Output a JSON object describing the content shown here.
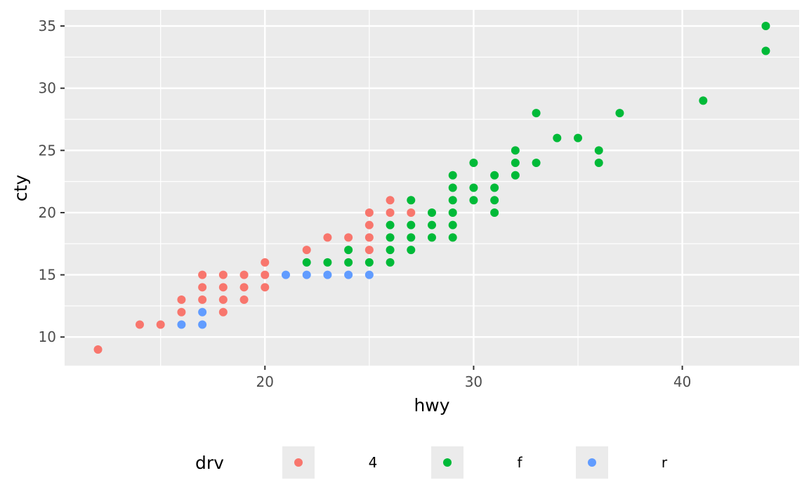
{
  "chart_data": {
    "type": "scatter",
    "xlabel": "hwy",
    "ylabel": "cty",
    "xlim": [
      10.4,
      45.6
    ],
    "ylim": [
      7.7,
      36.3
    ],
    "x_ticks": [
      20,
      30,
      40
    ],
    "x_minor_ticks": [
      15,
      25,
      35
    ],
    "y_ticks": [
      10,
      15,
      20,
      25,
      30,
      35
    ],
    "y_minor_ticks": [
      12.5,
      17.5,
      22.5,
      27.5,
      32.5
    ],
    "grid": true,
    "panel_background": "#ebebeb",
    "legend": {
      "title": "drv",
      "position": "bottom",
      "entries": [
        {
          "label": "4",
          "color": "#F8766D"
        },
        {
          "label": "f",
          "color": "#00BA38"
        },
        {
          "label": "r",
          "color": "#619CFF"
        }
      ]
    },
    "series": [
      {
        "name": "4",
        "color": "#F8766D",
        "points": [
          [
            12,
            9
          ],
          [
            14,
            11
          ],
          [
            15,
            11
          ],
          [
            16,
            12
          ],
          [
            16,
            13
          ],
          [
            17,
            13
          ],
          [
            17,
            14
          ],
          [
            17,
            15
          ],
          [
            18,
            12
          ],
          [
            18,
            13
          ],
          [
            18,
            14
          ],
          [
            18,
            15
          ],
          [
            19,
            13
          ],
          [
            19,
            14
          ],
          [
            19,
            15
          ],
          [
            20,
            14
          ],
          [
            20,
            15
          ],
          [
            20,
            16
          ],
          [
            22,
            17
          ],
          [
            23,
            18
          ],
          [
            24,
            18
          ],
          [
            25,
            17
          ],
          [
            25,
            18
          ],
          [
            25,
            19
          ],
          [
            25,
            20
          ],
          [
            26,
            20
          ],
          [
            26,
            21
          ],
          [
            27,
            20
          ]
        ]
      },
      {
        "name": "f",
        "color": "#00BA38",
        "points": [
          [
            22,
            16
          ],
          [
            23,
            16
          ],
          [
            24,
            16
          ],
          [
            24,
            17
          ],
          [
            25,
            16
          ],
          [
            26,
            16
          ],
          [
            26,
            17
          ],
          [
            26,
            18
          ],
          [
            26,
            19
          ],
          [
            27,
            17
          ],
          [
            27,
            18
          ],
          [
            27,
            19
          ],
          [
            27,
            21
          ],
          [
            28,
            18
          ],
          [
            28,
            19
          ],
          [
            28,
            20
          ],
          [
            29,
            18
          ],
          [
            29,
            19
          ],
          [
            29,
            20
          ],
          [
            29,
            21
          ],
          [
            29,
            22
          ],
          [
            29,
            23
          ],
          [
            30,
            21
          ],
          [
            30,
            22
          ],
          [
            30,
            24
          ],
          [
            31,
            20
          ],
          [
            31,
            21
          ],
          [
            31,
            22
          ],
          [
            31,
            23
          ],
          [
            32,
            23
          ],
          [
            32,
            24
          ],
          [
            32,
            25
          ],
          [
            33,
            24
          ],
          [
            33,
            28
          ],
          [
            34,
            26
          ],
          [
            35,
            26
          ],
          [
            36,
            24
          ],
          [
            36,
            25
          ],
          [
            37,
            28
          ],
          [
            41,
            29
          ],
          [
            44,
            33
          ],
          [
            44,
            35
          ]
        ]
      },
      {
        "name": "r",
        "color": "#619CFF",
        "points": [
          [
            16,
            11
          ],
          [
            17,
            11
          ],
          [
            17,
            12
          ],
          [
            21,
            15
          ],
          [
            22,
            15
          ],
          [
            23,
            15
          ],
          [
            24,
            15
          ],
          [
            25,
            15
          ]
        ]
      }
    ]
  }
}
